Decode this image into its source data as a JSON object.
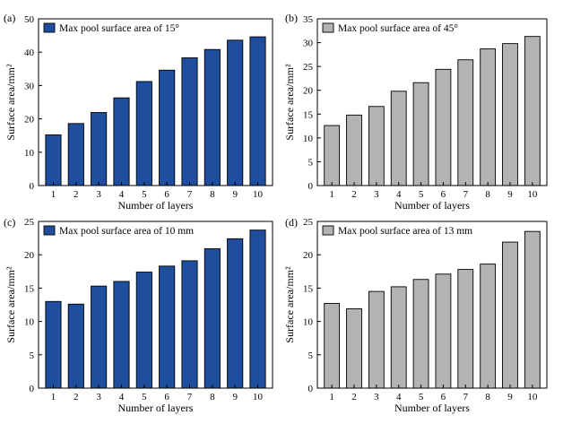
{
  "chart_data": [
    {
      "type": "bar",
      "panel_label": "(a)",
      "categories": [
        "1",
        "2",
        "3",
        "4",
        "5",
        "6",
        "7",
        "8",
        "9",
        "10"
      ],
      "series": [
        {
          "name": "Max pool surface area of 15°",
          "values": [
            15.2,
            18.6,
            21.9,
            26.3,
            31.2,
            34.6,
            38.3,
            40.8,
            43.6,
            44.6
          ]
        }
      ],
      "xlabel": "Number of layers",
      "ylabel": "Surface area/mm²",
      "ylim": [
        0,
        50
      ],
      "yticks": [
        0,
        10,
        20,
        30,
        40,
        50
      ],
      "bar_color": "#1f4e9e",
      "legend": "top-left"
    },
    {
      "type": "bar",
      "panel_label": "(b)",
      "categories": [
        "1",
        "2",
        "3",
        "4",
        "5",
        "6",
        "7",
        "8",
        "9",
        "10"
      ],
      "series": [
        {
          "name": "Max pool surface area of 45°",
          "values": [
            12.6,
            14.8,
            16.6,
            19.8,
            21.6,
            24.4,
            26.4,
            28.7,
            29.8,
            31.3
          ]
        }
      ],
      "xlabel": "Number of layers",
      "ylabel": "Surface area/mm²",
      "ylim": [
        0,
        35
      ],
      "yticks": [
        0,
        5,
        10,
        15,
        20,
        25,
        30,
        35
      ],
      "bar_color": "#b3b3b3",
      "legend": "top-left"
    },
    {
      "type": "bar",
      "panel_label": "(c)",
      "categories": [
        "1",
        "2",
        "3",
        "4",
        "5",
        "6",
        "7",
        "8",
        "9",
        "10"
      ],
      "series": [
        {
          "name": "Max pool surface area of 10 mm",
          "values": [
            13.0,
            12.6,
            15.3,
            16.0,
            17.4,
            18.3,
            19.1,
            20.9,
            22.4,
            23.7
          ]
        }
      ],
      "xlabel": "Number of layers",
      "ylabel": "Surface area/mm²",
      "ylim": [
        0,
        25
      ],
      "yticks": [
        0,
        5,
        10,
        15,
        20,
        25
      ],
      "bar_color": "#1f4e9e",
      "legend": "top-left"
    },
    {
      "type": "bar",
      "panel_label": "(d)",
      "categories": [
        "1",
        "2",
        "3",
        "4",
        "5",
        "6",
        "7",
        "8",
        "9",
        "10"
      ],
      "series": [
        {
          "name": "Max pool surface area of 13 mm",
          "values": [
            12.7,
            11.9,
            14.5,
            15.2,
            16.3,
            17.1,
            17.8,
            18.6,
            21.9,
            23.5
          ]
        }
      ],
      "xlabel": "Number of layers",
      "ylabel": "Surface area/mm²",
      "ylim": [
        0,
        25
      ],
      "yticks": [
        0,
        5,
        10,
        15,
        20,
        25
      ],
      "bar_color": "#b3b3b3",
      "legend": "top-left"
    }
  ]
}
